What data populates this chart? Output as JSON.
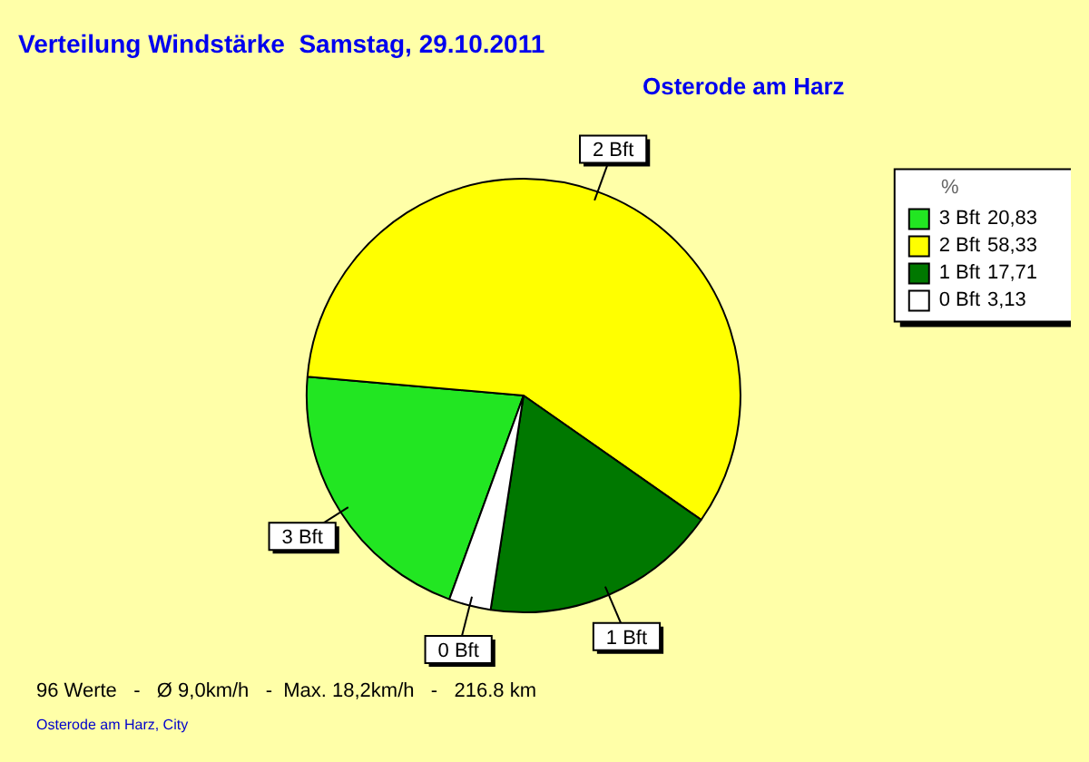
{
  "chart_data": {
    "type": "pie",
    "title": "Verteilung Windstärke  Samstag, 29.10.2011",
    "subtitle": "Osterode am Harz",
    "categories": [
      "3 Bft",
      "2 Bft",
      "1 Bft",
      "0 Bft"
    ],
    "values": [
      20.83,
      58.33,
      17.71,
      3.13
    ],
    "colors": [
      "#22e622",
      "#ffff00",
      "#007800",
      "#ffffff"
    ],
    "value_labels": [
      "20,83",
      "58,33",
      "17,71",
      "3,13"
    ],
    "legend_title": "%",
    "legend": "top right",
    "annotations": [
      "96 Werte   -   Ø 9,0km/h   -  Max. 18,2km/h   -   216.8 km",
      "Osterode am Harz, City"
    ]
  }
}
